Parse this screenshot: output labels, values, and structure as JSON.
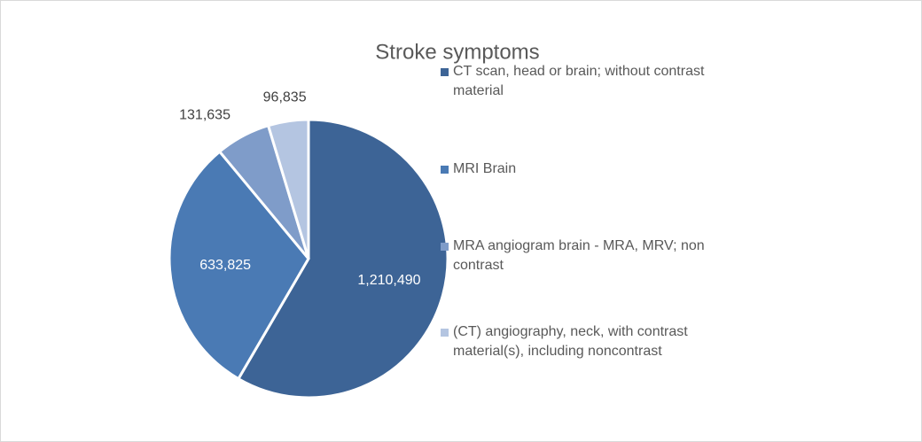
{
  "chart_data": {
    "type": "pie",
    "title": "Stroke symptoms",
    "categories": [
      "CT scan, head or brain; without contrast material",
      "MRI Brain",
      "MRA angiogram brain - MRA, MRV; non contrast",
      "(CT) angiography, neck, with contrast material(s), including noncontrast"
    ],
    "values": [
      1210490,
      633825,
      131635,
      96835
    ],
    "value_labels": [
      "1,210,490",
      "633,825",
      "131,635",
      "96,835"
    ],
    "colors": [
      "#3d6496",
      "#4a7ab4",
      "#7f9cc9",
      "#b4c5e1"
    ],
    "legend": "right"
  }
}
